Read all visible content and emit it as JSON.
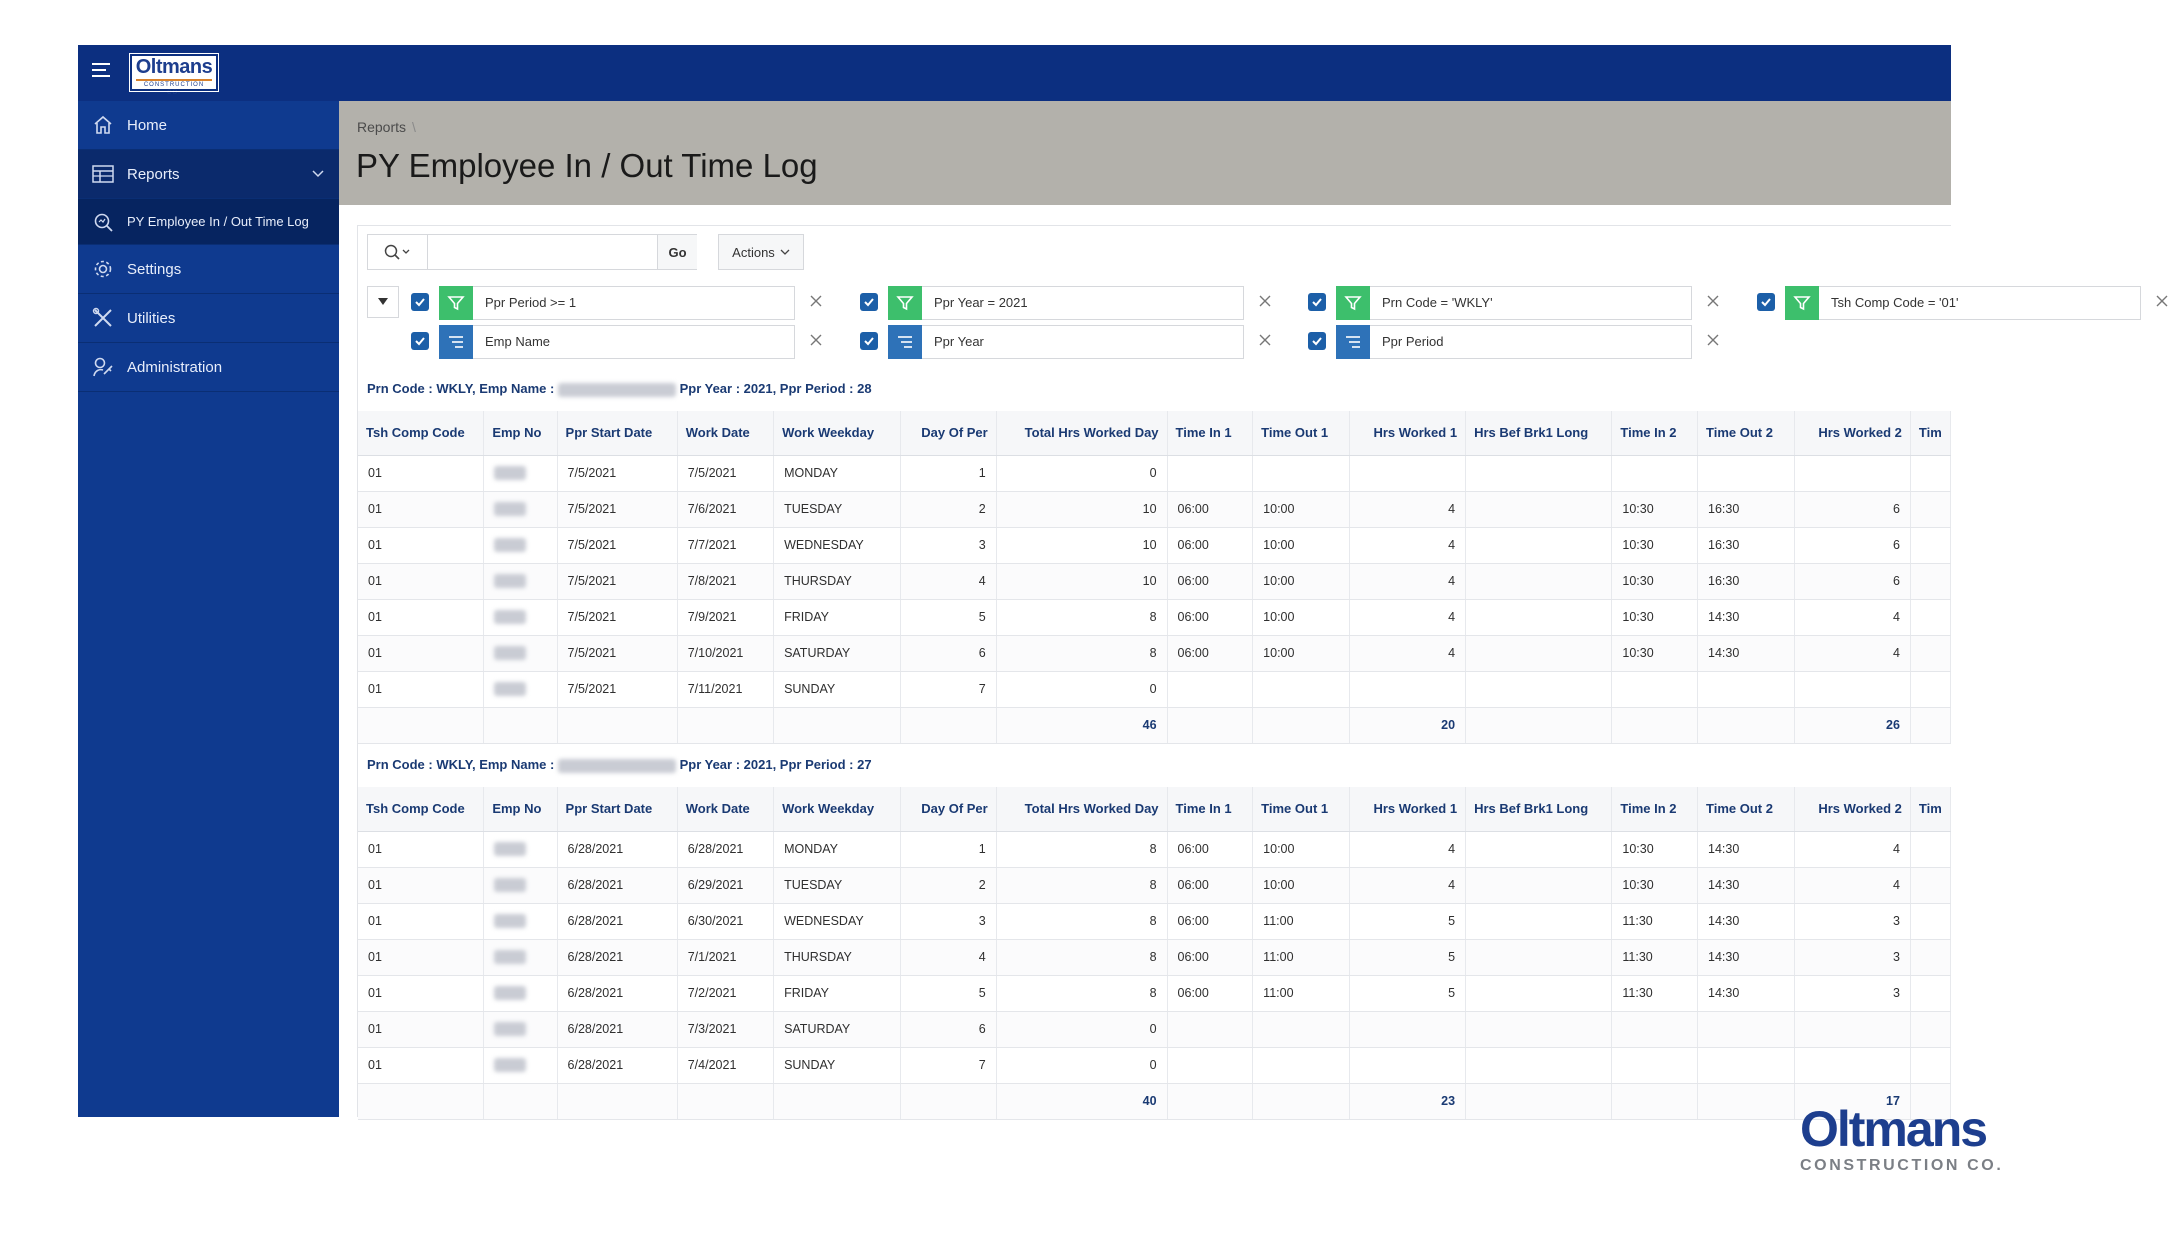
{
  "app": {
    "logo_text": "Oltmans",
    "logo_sub": "CONSTRUCTION CO."
  },
  "sidebar": {
    "items": [
      {
        "label": "Home",
        "icon": "home-icon"
      },
      {
        "label": "Reports",
        "icon": "reports-icon"
      },
      {
        "label": "PY Employee In / Out Time Log",
        "icon": "search-report-icon"
      },
      {
        "label": "Settings",
        "icon": "gear-icon"
      },
      {
        "label": "Utilities",
        "icon": "tools-icon"
      },
      {
        "label": "Administration",
        "icon": "admin-key-icon"
      }
    ]
  },
  "breadcrumb": {
    "item": "Reports",
    "sep": "\\"
  },
  "page": {
    "title": "PY Employee In / Out Time Log"
  },
  "toolbar": {
    "search_value": "",
    "go_label": "Go",
    "actions_label": "Actions"
  },
  "filters": {
    "row1": [
      {
        "type": "filter",
        "text": "Ppr Period >= 1"
      },
      {
        "type": "filter",
        "text": "Ppr Year = 2021"
      },
      {
        "type": "filter",
        "text": "Prn Code = 'WKLY'"
      },
      {
        "type": "filter",
        "text": "Tsh Comp Code = '01'"
      }
    ],
    "row2": [
      {
        "type": "sort",
        "text": "Emp Name"
      },
      {
        "type": "sort",
        "text": "Ppr Year"
      },
      {
        "type": "sort",
        "text": "Ppr Period"
      }
    ]
  },
  "columns": [
    "Tsh Comp Code",
    "Emp No",
    "Ppr Start Date",
    "Work Date",
    "Work Weekday",
    "Day Of Per",
    "Total Hrs Worked Day",
    "Time In 1",
    "Time Out 1",
    "Hrs Worked 1",
    "Hrs Bef Brk1 Long",
    "Time In 2",
    "Time Out 2",
    "Hrs Worked 2",
    "Tim"
  ],
  "groups": [
    {
      "head_a": "Prn Code : WKLY, Emp Name :",
      "head_b": "Ppr Year : 2021, Ppr Period : 28",
      "rows": [
        [
          "01",
          "",
          "7/5/2021",
          "7/5/2021",
          "MONDAY",
          "1",
          "0",
          "",
          "",
          "",
          "",
          "",
          "",
          "",
          ""
        ],
        [
          "01",
          "",
          "7/5/2021",
          "7/6/2021",
          "TUESDAY",
          "2",
          "10",
          "06:00",
          "10:00",
          "4",
          "",
          "10:30",
          "16:30",
          "6",
          ""
        ],
        [
          "01",
          "",
          "7/5/2021",
          "7/7/2021",
          "WEDNESDAY",
          "3",
          "10",
          "06:00",
          "10:00",
          "4",
          "",
          "10:30",
          "16:30",
          "6",
          ""
        ],
        [
          "01",
          "",
          "7/5/2021",
          "7/8/2021",
          "THURSDAY",
          "4",
          "10",
          "06:00",
          "10:00",
          "4",
          "",
          "10:30",
          "16:30",
          "6",
          ""
        ],
        [
          "01",
          "",
          "7/5/2021",
          "7/9/2021",
          "FRIDAY",
          "5",
          "8",
          "06:00",
          "10:00",
          "4",
          "",
          "10:30",
          "14:30",
          "4",
          ""
        ],
        [
          "01",
          "",
          "7/5/2021",
          "7/10/2021",
          "SATURDAY",
          "6",
          "8",
          "06:00",
          "10:00",
          "4",
          "",
          "10:30",
          "14:30",
          "4",
          ""
        ],
        [
          "01",
          "",
          "7/5/2021",
          "7/11/2021",
          "SUNDAY",
          "7",
          "0",
          "",
          "",
          "",
          "",
          "",
          "",
          "",
          ""
        ]
      ],
      "totals": [
        "",
        "",
        "",
        "",
        "",
        "",
        "46",
        "",
        "",
        "20",
        "",
        "",
        "",
        "26",
        ""
      ]
    },
    {
      "head_a": "Prn Code : WKLY, Emp Name :",
      "head_b": "Ppr Year : 2021, Ppr Period : 27",
      "rows": [
        [
          "01",
          "",
          "6/28/2021",
          "6/28/2021",
          "MONDAY",
          "1",
          "8",
          "06:00",
          "10:00",
          "4",
          "",
          "10:30",
          "14:30",
          "4",
          ""
        ],
        [
          "01",
          "",
          "6/28/2021",
          "6/29/2021",
          "TUESDAY",
          "2",
          "8",
          "06:00",
          "10:00",
          "4",
          "",
          "10:30",
          "14:30",
          "4",
          ""
        ],
        [
          "01",
          "",
          "6/28/2021",
          "6/30/2021",
          "WEDNESDAY",
          "3",
          "8",
          "06:00",
          "11:00",
          "5",
          "",
          "11:30",
          "14:30",
          "3",
          ""
        ],
        [
          "01",
          "",
          "6/28/2021",
          "7/1/2021",
          "THURSDAY",
          "4",
          "8",
          "06:00",
          "11:00",
          "5",
          "",
          "11:30",
          "14:30",
          "3",
          ""
        ],
        [
          "01",
          "",
          "6/28/2021",
          "7/2/2021",
          "FRIDAY",
          "5",
          "8",
          "06:00",
          "11:00",
          "5",
          "",
          "11:30",
          "14:30",
          "3",
          ""
        ],
        [
          "01",
          "",
          "6/28/2021",
          "7/3/2021",
          "SATURDAY",
          "6",
          "0",
          "",
          "",
          "",
          "",
          "",
          "",
          "",
          ""
        ],
        [
          "01",
          "",
          "6/28/2021",
          "7/4/2021",
          "SUNDAY",
          "7",
          "0",
          "",
          "",
          "",
          "",
          "",
          "",
          "",
          ""
        ]
      ],
      "totals": [
        "",
        "",
        "",
        "",
        "",
        "",
        "40",
        "",
        "",
        "23",
        "",
        "",
        "",
        "17",
        ""
      ]
    }
  ],
  "footer_logo": {
    "text": "Oltmans",
    "sub": "CONSTRUCTION CO."
  },
  "colors": {
    "brand": "#0c2f80",
    "sidebar": "#0f3a8f",
    "filter_green": "#3dbf6c",
    "sort_blue": "#2e72b8"
  }
}
